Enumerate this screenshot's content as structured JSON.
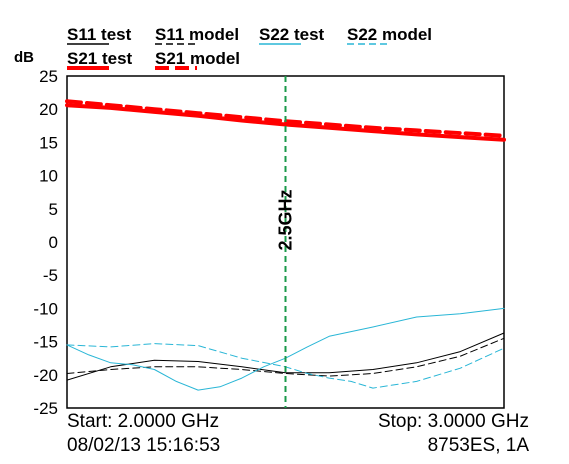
{
  "chart_data": {
    "type": "line",
    "ylabel": "dB",
    "ylim": [
      -25,
      25
    ],
    "yticks": [
      25,
      20,
      15,
      10,
      5,
      0,
      -5,
      -10,
      -15,
      -20,
      -25
    ],
    "xlim": [
      2.0,
      3.0
    ],
    "x_unit": "GHz",
    "grid": false,
    "legend_position": "top",
    "marker": {
      "x": 2.5,
      "label": "2.5GHz",
      "color": "#1a9a4a"
    },
    "series": [
      {
        "name": "S11 test",
        "color": "#000000",
        "dash": false,
        "width": 1,
        "x": [
          2.0,
          2.1,
          2.2,
          2.3,
          2.4,
          2.5,
          2.6,
          2.7,
          2.8,
          2.9,
          3.0
        ],
        "y": [
          -20.8,
          -18.8,
          -17.8,
          -18.0,
          -18.8,
          -19.7,
          -19.7,
          -19.2,
          -18.2,
          -16.5,
          -13.7
        ]
      },
      {
        "name": "S11 model",
        "color": "#000000",
        "dash": true,
        "width": 1,
        "x": [
          2.0,
          2.1,
          2.2,
          2.3,
          2.4,
          2.5,
          2.6,
          2.7,
          2.8,
          2.9,
          3.0
        ],
        "y": [
          -19.8,
          -19.2,
          -18.8,
          -18.8,
          -19.2,
          -19.8,
          -20.2,
          -19.8,
          -18.8,
          -17.2,
          -14.5
        ]
      },
      {
        "name": "S22 test",
        "color": "#29b6d6",
        "dash": false,
        "width": 1,
        "x": [
          2.0,
          2.05,
          2.1,
          2.15,
          2.2,
          2.25,
          2.3,
          2.35,
          2.4,
          2.45,
          2.5,
          2.55,
          2.6,
          2.7,
          2.8,
          2.9,
          3.0
        ],
        "y": [
          -15.5,
          -17.0,
          -18.2,
          -18.5,
          -19.2,
          -21.0,
          -22.3,
          -21.8,
          -20.5,
          -18.8,
          -17.5,
          -15.8,
          -14.2,
          -12.8,
          -11.3,
          -10.8,
          -10.0
        ]
      },
      {
        "name": "S22 model",
        "color": "#29b6d6",
        "dash": true,
        "width": 1,
        "x": [
          2.0,
          2.1,
          2.2,
          2.3,
          2.4,
          2.5,
          2.55,
          2.6,
          2.65,
          2.7,
          2.8,
          2.9,
          3.0
        ],
        "y": [
          -15.5,
          -15.8,
          -15.3,
          -15.6,
          -17.5,
          -18.8,
          -19.8,
          -20.5,
          -21.0,
          -22.0,
          -21.0,
          -19.0,
          -16.0
        ]
      },
      {
        "name": "S21 test",
        "color": "#ff0000",
        "dash": false,
        "width": 4,
        "x": [
          2.0,
          2.1,
          2.2,
          2.3,
          2.4,
          2.5,
          2.6,
          2.7,
          2.8,
          2.9,
          3.0
        ],
        "y": [
          20.6,
          20.2,
          19.6,
          19.0,
          18.3,
          17.7,
          17.2,
          16.7,
          16.2,
          15.8,
          15.4
        ]
      },
      {
        "name": "S21 model",
        "color": "#ff0000",
        "dash": true,
        "width": 4,
        "x": [
          2.0,
          2.1,
          2.2,
          2.3,
          2.4,
          2.5,
          2.6,
          2.7,
          2.8,
          2.9,
          3.0
        ],
        "y": [
          21.2,
          20.6,
          20.0,
          19.4,
          18.8,
          18.2,
          17.7,
          17.2,
          16.8,
          16.4,
          16.0
        ]
      }
    ]
  },
  "footer": {
    "start": "Start: 2.0000 GHz",
    "stop": "Stop: 3.0000 GHz",
    "timestamp": "08/02/13 15:16:53",
    "instrument": "8753ES, 1A"
  }
}
